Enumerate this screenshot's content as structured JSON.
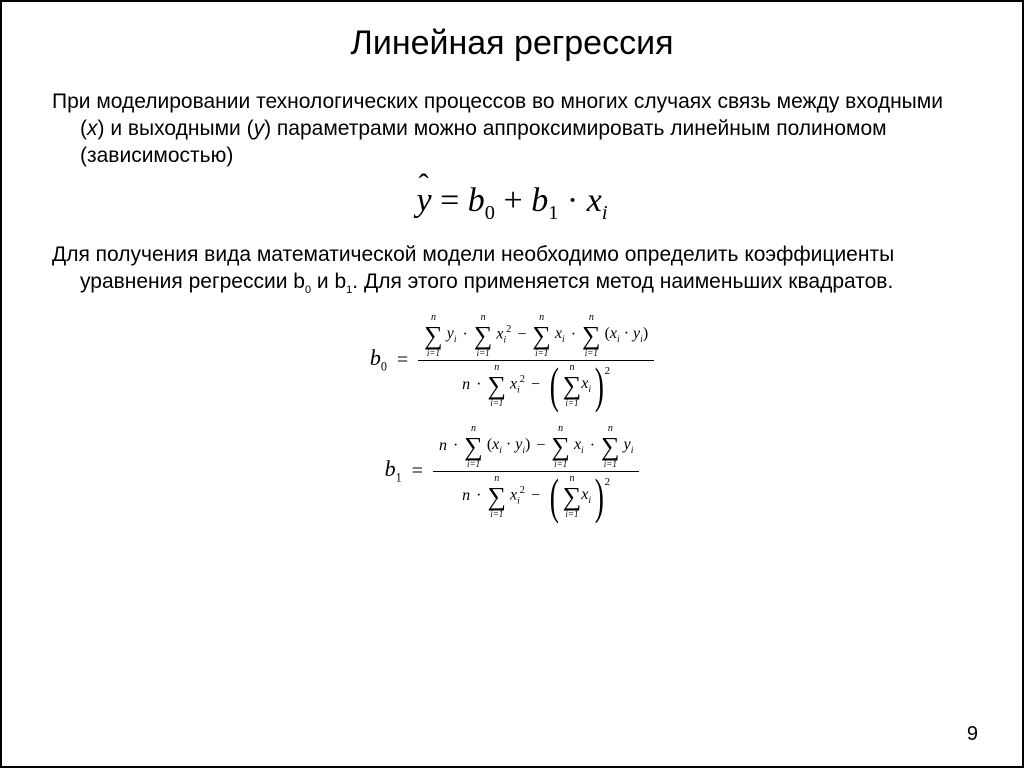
{
  "title": "Линейная регрессия",
  "para1_a": "При моделировании технологических процессов во многих случаях связь между входными (",
  "para1_x": "x",
  "para1_b": ") и выходными (",
  "para1_y": "y",
  "para1_c": ") параметрами можно аппроксимировать линейным полиномом (зависимостью)",
  "eq_main": {
    "y": "y",
    "eq": " = ",
    "b0": "b",
    "s0": "0",
    "plus": " + ",
    "b1": "b",
    "s1": "1",
    "dot": " · ",
    "x": "x",
    "si": "i"
  },
  "para2_a": "Для получения вида математической модели необходимо определить коэффициенты уравнения регрессии b",
  "para2_s0": "0",
  "para2_b": " и b",
  "para2_s1": "1",
  "para2_c": ". Для этого применяется метод наименьших квадратов.",
  "sig": {
    "top": "n",
    "sym": "∑",
    "bot": "i=1"
  },
  "terms": {
    "yi": "y",
    "yi_s": "i",
    "xi2": "x",
    "xi2_s": "i",
    "xi2_p": "2",
    "xi": "x",
    "xi_s": "i",
    "xiyi_open": "(",
    "xiyi_x": "x",
    "xiyi_xs": "i",
    "xiyi_dot": " · ",
    "xiyi_y": "y",
    "xiyi_ys": "i",
    "xiyi_close": ")",
    "n": "n"
  },
  "ops": {
    "dot": "·",
    "minus": "−",
    "eq": "="
  },
  "lhs": {
    "b": "b",
    "s0": "0",
    "s1": "1"
  },
  "sq": "2",
  "pagenum": "9"
}
